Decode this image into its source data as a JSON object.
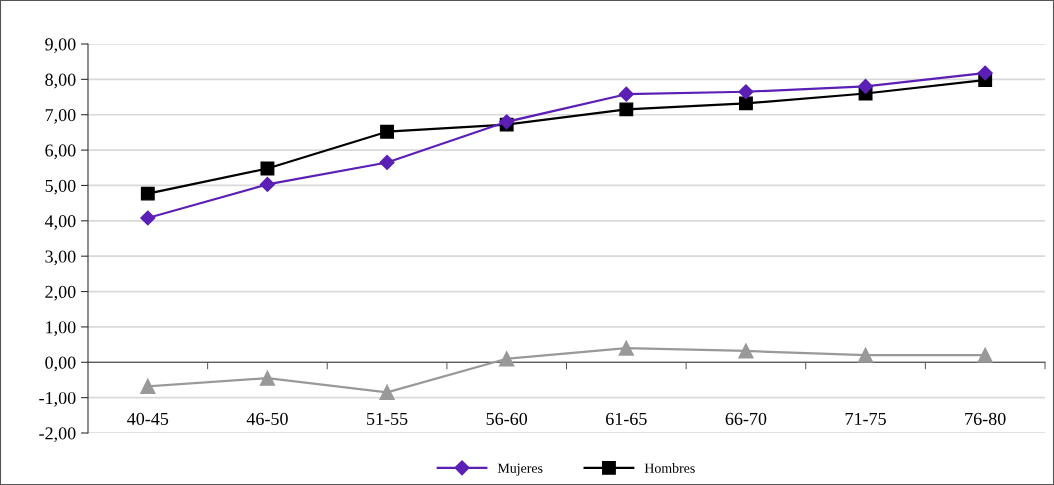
{
  "chart_data": {
    "type": "line",
    "categories": [
      "40-45",
      "46-50",
      "51-55",
      "56-60",
      "61-65",
      "66-70",
      "71-75",
      "76-80"
    ],
    "series": [
      {
        "name": "Mujeres",
        "color": "#5b1fb5",
        "marker": "diamond",
        "values": [
          4.08,
          5.03,
          5.65,
          6.8,
          7.58,
          7.65,
          7.8,
          8.18
        ]
      },
      {
        "name": "Hombres",
        "color": "#000000",
        "marker": "square",
        "values": [
          4.77,
          5.48,
          6.52,
          6.72,
          7.15,
          7.32,
          7.6,
          7.98
        ]
      },
      {
        "color": "#999999",
        "marker": "triangle",
        "values": [
          -0.68,
          -0.45,
          -0.85,
          0.1,
          0.4,
          0.32,
          0.2,
          0.2
        ]
      }
    ],
    "ylim": [
      -2,
      9
    ],
    "yticks": [
      {
        "value": -2,
        "label": "-2,00"
      },
      {
        "value": -1,
        "label": "-1,00"
      },
      {
        "value": 0,
        "label": "0,00"
      },
      {
        "value": 1,
        "label": "1,00"
      },
      {
        "value": 2,
        "label": "2,00"
      },
      {
        "value": 3,
        "label": "3,00"
      },
      {
        "value": 4,
        "label": "4,00"
      },
      {
        "value": 5,
        "label": "5,00"
      },
      {
        "value": 6,
        "label": "6,00"
      },
      {
        "value": 7,
        "label": "7,00"
      },
      {
        "value": 8,
        "label": "8,00"
      },
      {
        "value": 9,
        "label": "9,00"
      }
    ],
    "grid": "y",
    "legend": "bottom",
    "line_style": "solid"
  }
}
